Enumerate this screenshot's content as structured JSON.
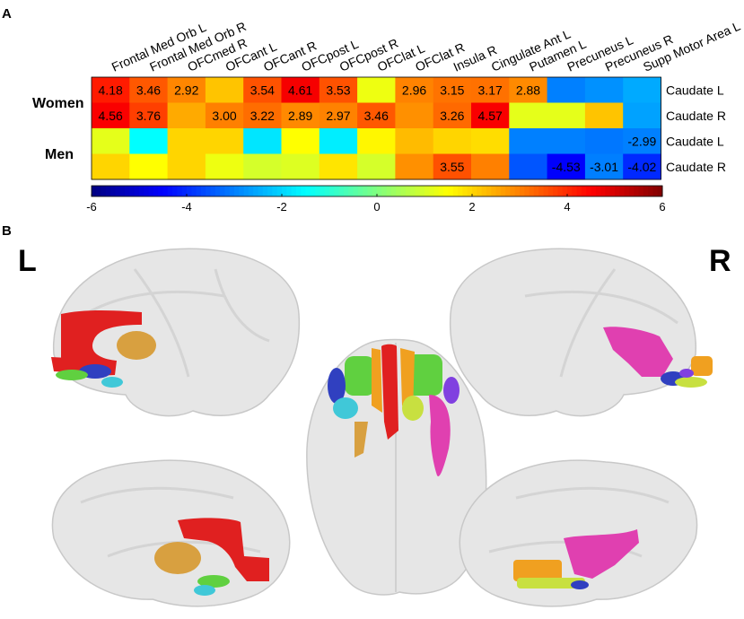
{
  "panel_labels": [
    "A",
    "B"
  ],
  "hemisphere_labels": {
    "left": "L",
    "right": "R"
  },
  "chart_data": {
    "type": "heatmap",
    "title": "",
    "columns": [
      "Frontal Med Orb L",
      "Frontal Med Orb R",
      "OFCmed R",
      "OFCant L",
      "OFCant R",
      "OFCpost L",
      "OFCpost R",
      "OFClat L",
      "OFClat R",
      "Insula R",
      "Cingulate Ant L",
      "Putamen L",
      "Precuneus L",
      "Precuneus R",
      "Supp Motor Area L"
    ],
    "groups": [
      "Women",
      "Men"
    ],
    "rows": [
      {
        "group": "Women",
        "label": "Caudate L",
        "values": [
          4.18,
          3.46,
          2.92,
          2.2,
          3.54,
          4.61,
          3.53,
          1.3,
          2.96,
          3.15,
          3.17,
          2.88,
          -3.0,
          -2.8,
          -2.5
        ],
        "labels": [
          "4.18",
          "3.46",
          "2.92",
          "",
          "3.54",
          "4.61",
          "3.53",
          "",
          "2.96",
          "3.15",
          "3.17",
          "2.88",
          "",
          "",
          ""
        ]
      },
      {
        "group": "Women",
        "label": "Caudate R",
        "values": [
          4.56,
          3.76,
          2.5,
          3.0,
          3.22,
          2.89,
          2.97,
          3.46,
          2.8,
          3.26,
          4.57,
          1.2,
          1.2,
          2.2,
          -2.6
        ],
        "labels": [
          "4.56",
          "3.76",
          "",
          "3.00",
          "3.22",
          "2.89",
          "2.97",
          "3.46",
          "",
          "3.26",
          "4.57",
          "",
          "",
          "",
          ""
        ]
      },
      {
        "group": "Men",
        "label": "Caudate L",
        "values": [
          1.2,
          -1.5,
          2.0,
          2.0,
          -1.8,
          1.5,
          -1.7,
          1.6,
          2.3,
          2.0,
          1.9,
          -3.0,
          -3.0,
          -3.1,
          -2.99
        ],
        "labels": [
          "",
          "",
          "",
          "",
          "",
          "",
          "",
          "",
          "",
          "",
          "",
          "",
          "",
          "",
          "-2.99"
        ]
      },
      {
        "group": "Men",
        "label": "Caudate R",
        "values": [
          2.0,
          1.5,
          2.0,
          1.3,
          1.0,
          1.1,
          1.8,
          1.0,
          2.8,
          3.55,
          3.0,
          -3.5,
          -4.53,
          -3.01,
          -4.02
        ],
        "labels": [
          "",
          "",
          "",
          "",
          "",
          "",
          "",
          "",
          "",
          "3.55",
          "",
          "",
          "-4.53",
          "-3.01",
          "-4.02"
        ]
      }
    ],
    "colorbar": {
      "min": -6,
      "max": 6,
      "ticks": [
        -6,
        -4,
        -2,
        0,
        2,
        4,
        6
      ],
      "colormap": "jet"
    }
  },
  "brain_figure": {
    "views": [
      "left-lateral",
      "left-medial",
      "dorsal",
      "right-lateral",
      "right-medial"
    ],
    "region_colors": {
      "frontal_med_orb": "#e02020",
      "cingulate": "#e02020",
      "caudate": "#d8a040",
      "ofc_blue": "#3040c0",
      "ofc_cyan": "#40c8d8",
      "ofc_green": "#60d040",
      "insula_putamen": "#e040b0",
      "ofc_orange": "#f0a020",
      "ofc_yellow": "#c8e040",
      "purple": "#8040e0"
    }
  }
}
